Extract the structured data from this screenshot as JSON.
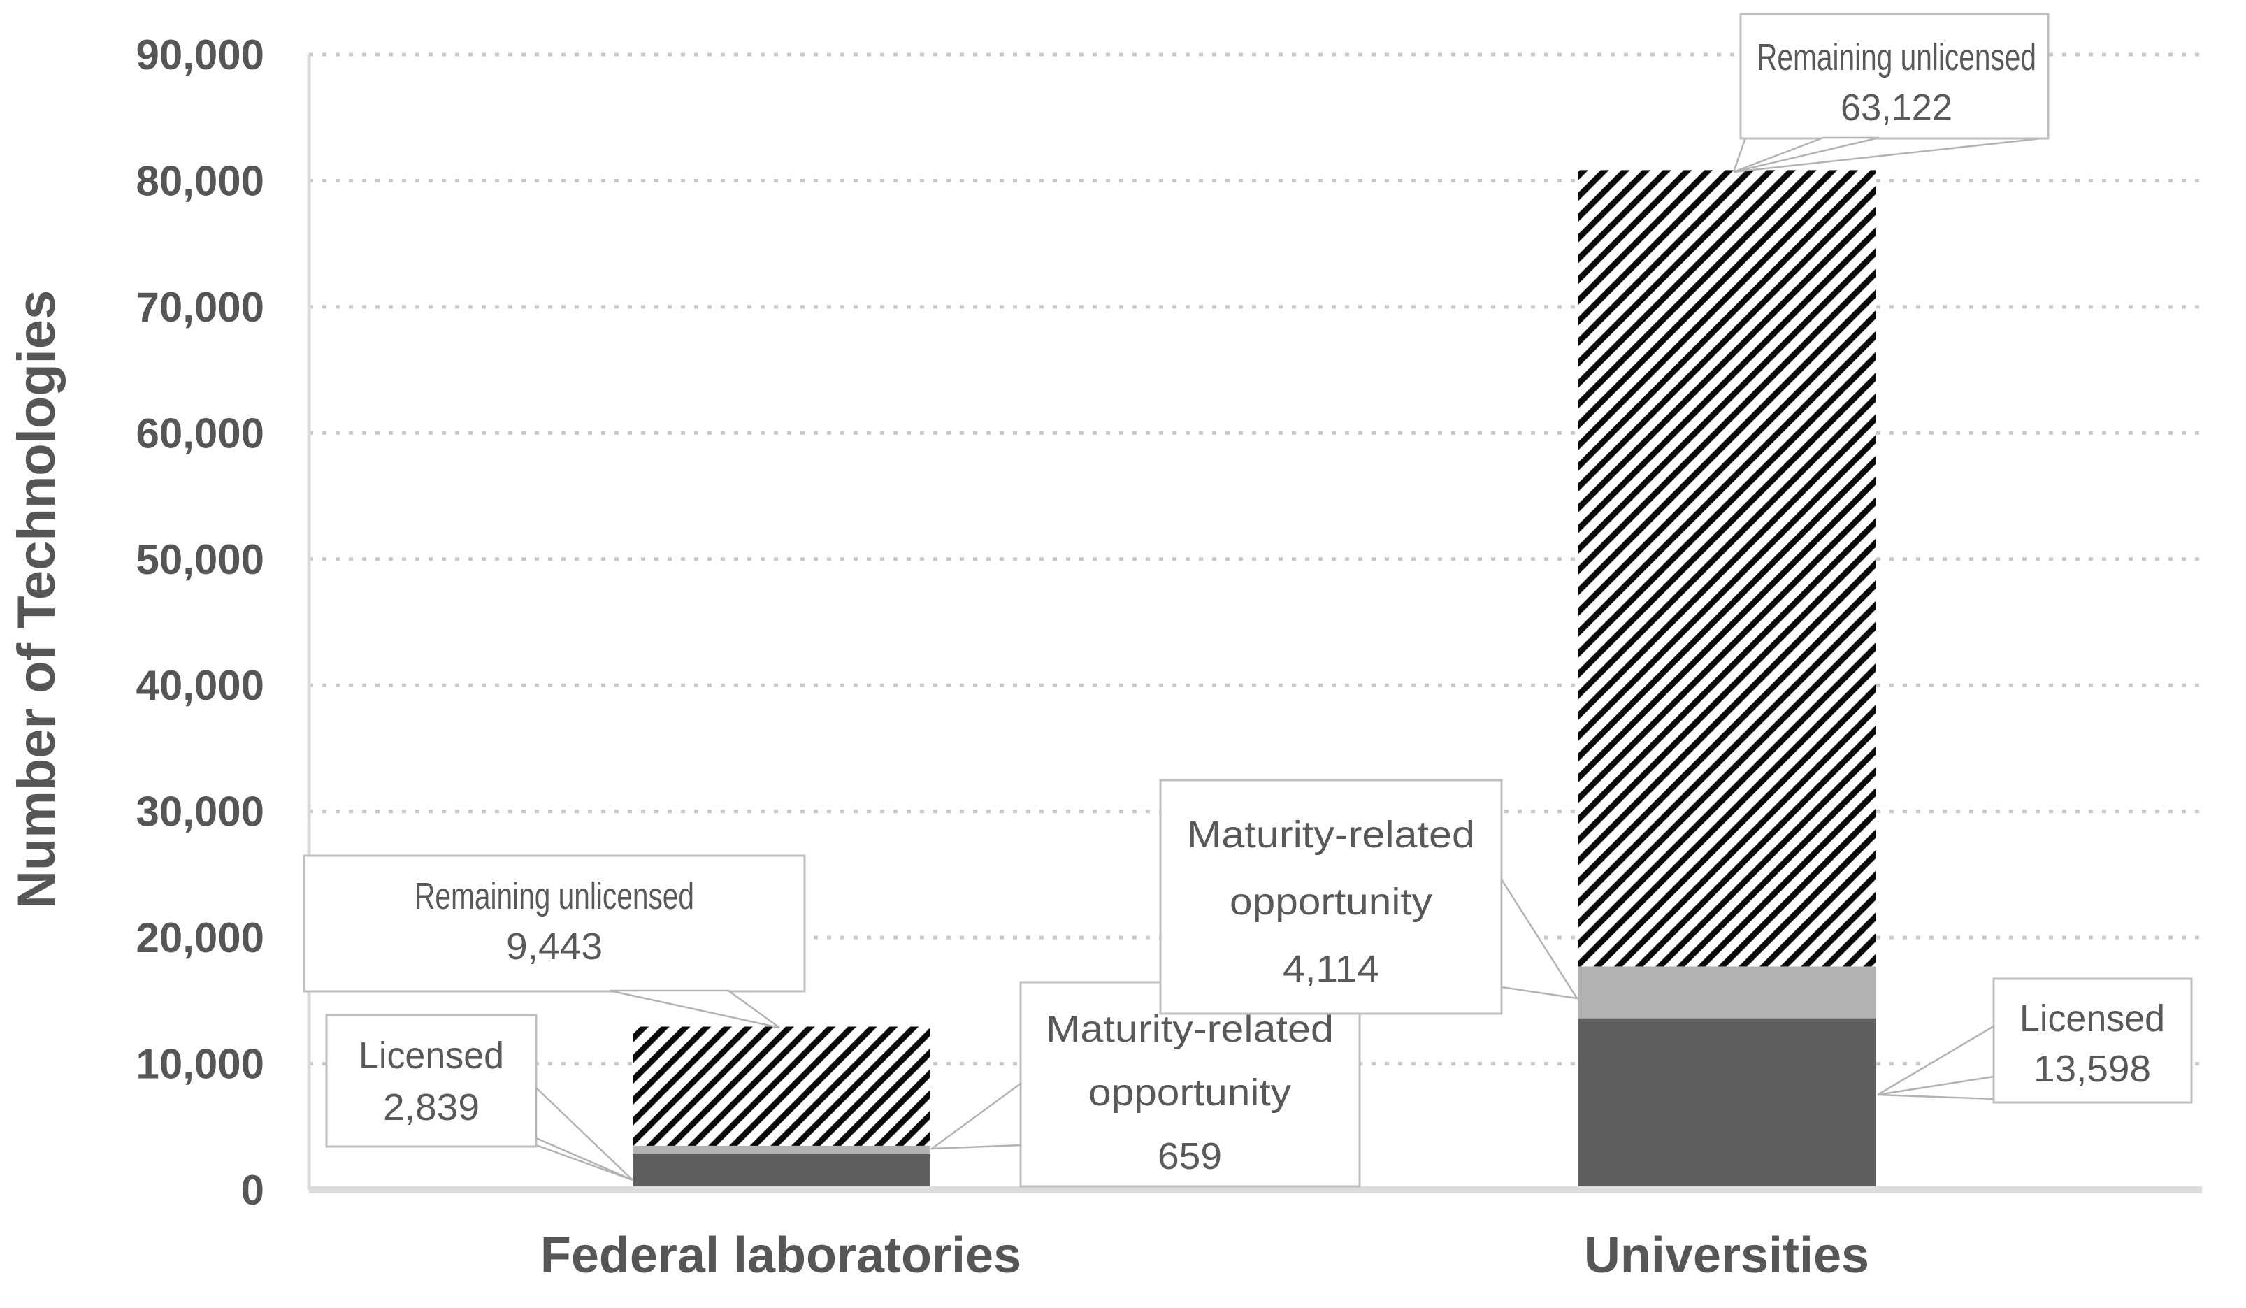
{
  "chart_data": {
    "type": "bar",
    "stacked": true,
    "categories": [
      "Federal laboratories",
      "Universities"
    ],
    "series": [
      {
        "name": "Licensed",
        "values": [
          2839,
          13598
        ],
        "color": "#5f5f5f",
        "pattern": "solid"
      },
      {
        "name": "Maturity-related opportunity",
        "values": [
          659,
          4114
        ],
        "color": "#b2b2b2",
        "pattern": "solid"
      },
      {
        "name": "Remaining unlicensed",
        "values": [
          9443,
          63122
        ],
        "color": "#0a0a0a",
        "pattern": "diagonal-hatch"
      }
    ],
    "totals": [
      12941,
      80834
    ],
    "title": "",
    "xlabel": "",
    "ylabel": "Number of Technologies",
    "ylim": [
      0,
      90000
    ],
    "ytick_interval": 10000,
    "yticks": [
      "0",
      "10,000",
      "20,000",
      "30,000",
      "40,000",
      "50,000",
      "60,000",
      "70,000",
      "80,000",
      "90,000"
    ],
    "grid": "dotted horizontal gridlines",
    "legend": "none; values labeled via callout annotations"
  },
  "annotations": [
    {
      "id": "uni-remaining",
      "lines": [
        "Remaining unlicensed",
        "63,122"
      ]
    },
    {
      "id": "fed-remaining",
      "lines": [
        "Remaining unlicensed",
        "9,443"
      ]
    },
    {
      "id": "fed-licensed",
      "lines": [
        "Licensed",
        "2,839"
      ]
    },
    {
      "id": "fed-maturity",
      "lines": [
        "Maturity-related",
        "opportunity",
        "659"
      ]
    },
    {
      "id": "uni-maturity",
      "lines": [
        "Maturity-related",
        "opportunity",
        "4,114"
      ]
    },
    {
      "id": "uni-licensed",
      "lines": [
        "Licensed",
        "13,598"
      ]
    }
  ],
  "colors": {
    "bar_dark_gray": "#5f5f5f",
    "bar_light_gray": "#b2b2b2",
    "hatch_black": "#0a0a0a",
    "grid_dots": "#c9c9c9",
    "axis_line": "#d9d9d9",
    "label_text": "#565656",
    "callout_text": "#595959",
    "callout_border": "#bfbfbf",
    "leader_line": "#b3b3b3"
  }
}
